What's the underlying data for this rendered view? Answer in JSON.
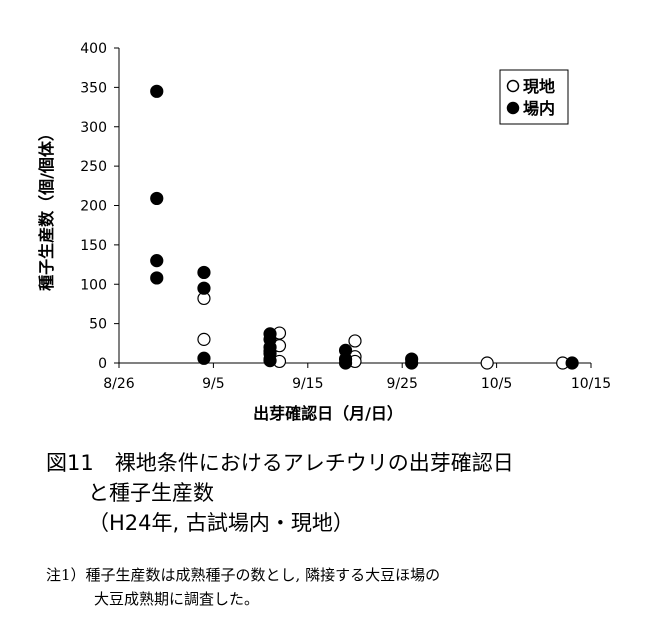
{
  "chart_data": {
    "type": "scatter",
    "title": "",
    "xlabel": "出芽確認日（月/日）",
    "ylabel": "種子生産数（個/個体）",
    "ylim": [
      0,
      400
    ],
    "yticks": [
      0,
      50,
      100,
      150,
      200,
      250,
      300,
      350,
      400
    ],
    "x_date_range": [
      "8/26",
      "10/15"
    ],
    "x_tick_labels": [
      "8/26",
      "9/5",
      "9/15",
      "9/25",
      "10/5",
      "10/15"
    ],
    "grid": false,
    "legend_position": "top-right",
    "series": [
      {
        "name": "現地",
        "marker": "open-circle",
        "color": "#000000",
        "points": [
          {
            "date": "9/4",
            "y": 82
          },
          {
            "date": "9/4",
            "y": 30
          },
          {
            "date": "9/11",
            "y": 15
          },
          {
            "date": "9/11",
            "y": 5
          },
          {
            "date": "9/12",
            "y": 38
          },
          {
            "date": "9/12",
            "y": 22
          },
          {
            "date": "9/12",
            "y": 2
          },
          {
            "date": "9/20",
            "y": 28
          },
          {
            "date": "9/20",
            "y": 8
          },
          {
            "date": "9/20",
            "y": 2
          },
          {
            "date": "10/4",
            "y": 0
          },
          {
            "date": "10/12",
            "y": 0
          }
        ]
      },
      {
        "name": "場内",
        "marker": "filled-circle",
        "color": "#000000",
        "points": [
          {
            "date": "8/30",
            "y": 345
          },
          {
            "date": "8/30",
            "y": 209
          },
          {
            "date": "8/30",
            "y": 130
          },
          {
            "date": "8/30",
            "y": 108
          },
          {
            "date": "9/4",
            "y": 115
          },
          {
            "date": "9/4",
            "y": 95
          },
          {
            "date": "9/4",
            "y": 6
          },
          {
            "date": "9/11",
            "y": 37
          },
          {
            "date": "9/11",
            "y": 30
          },
          {
            "date": "9/11",
            "y": 20
          },
          {
            "date": "9/11",
            "y": 12
          },
          {
            "date": "9/11",
            "y": 3
          },
          {
            "date": "9/19",
            "y": 16
          },
          {
            "date": "9/19",
            "y": 5
          },
          {
            "date": "9/19",
            "y": 0
          },
          {
            "date": "9/26",
            "y": 5
          },
          {
            "date": "9/26",
            "y": 0
          },
          {
            "date": "10/13",
            "y": 0
          }
        ]
      }
    ]
  },
  "caption": {
    "line1": "図11　裸地条件におけるアレチウリの出芽確認日",
    "line2": "と種子生産数",
    "line3": "（H24年, 古試場内・現地）"
  },
  "note": {
    "line1": "注1）種子生産数は成熟種子の数とし, 隣接する大豆ほ場の",
    "line2": "大豆成熟期に調査した。"
  }
}
